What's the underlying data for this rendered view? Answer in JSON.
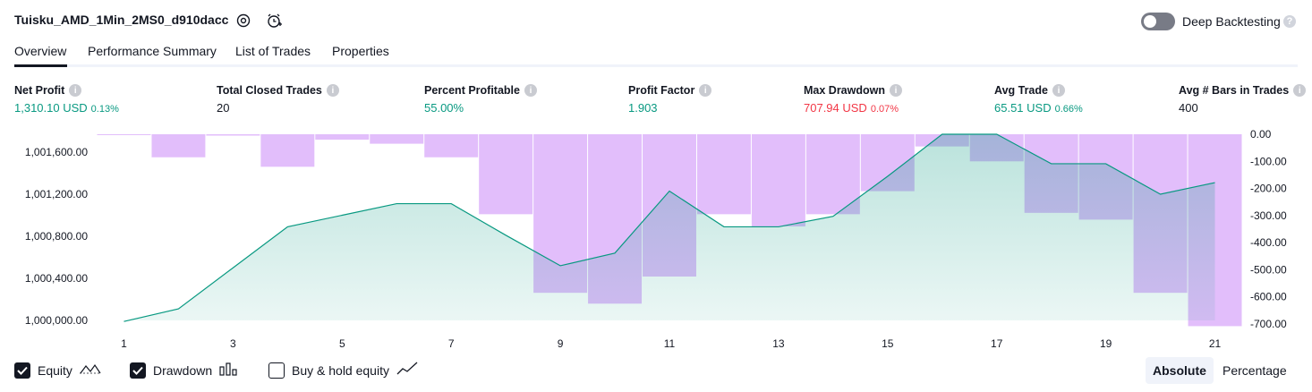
{
  "header": {
    "title": "Tuisku_AMD_1Min_2MS0_d910dacc",
    "deep_backtesting_label": "Deep Backtesting",
    "deep_backtesting_enabled": false
  },
  "tabs": [
    {
      "label": "Overview",
      "active": true
    },
    {
      "label": "Performance Summary",
      "active": false
    },
    {
      "label": "List of Trades",
      "active": false
    },
    {
      "label": "Properties",
      "active": false
    }
  ],
  "metrics": [
    {
      "label": "Net Profit",
      "value": "1,310.10 USD",
      "pct": "0.13%",
      "color": "#089981"
    },
    {
      "label": "Total Closed Trades",
      "value": "20",
      "pct": "",
      "color": "#131722"
    },
    {
      "label": "Percent Profitable",
      "value": "55.00%",
      "pct": "",
      "color": "#089981"
    },
    {
      "label": "Profit Factor",
      "value": "1.903",
      "pct": "",
      "color": "#089981"
    },
    {
      "label": "Max Drawdown",
      "value": "707.94 USD",
      "pct": "0.07%",
      "color": "#f23645"
    },
    {
      "label": "Avg Trade",
      "value": "65.51 USD",
      "pct": "0.66%",
      "color": "#089981"
    },
    {
      "label": "Avg # Bars in Trades",
      "value": "400",
      "pct": "",
      "color": "#131722"
    }
  ],
  "chart_data": {
    "type": "line",
    "x": [
      1,
      2,
      3,
      4,
      5,
      6,
      7,
      8,
      9,
      10,
      11,
      12,
      13,
      14,
      15,
      16,
      17,
      18,
      19,
      20,
      21
    ],
    "x_tick_labels": [
      "1",
      "3",
      "5",
      "7",
      "9",
      "11",
      "13",
      "15",
      "17",
      "19",
      "21"
    ],
    "series": [
      {
        "name": "Equity",
        "axis": "left",
        "style": "area",
        "color": "#089981",
        "values": [
          999990,
          1000110,
          1000500,
          1000890,
          1001000,
          1001110,
          1001110,
          1000810,
          1000520,
          1000640,
          1001230,
          1000890,
          1000890,
          1000990,
          1001370,
          1001770,
          1001770,
          1001490,
          1001490,
          1001200,
          1001310
        ]
      },
      {
        "name": "Drawdown",
        "axis": "right",
        "style": "bar",
        "color": "#ce93f8",
        "values": [
          0,
          -85,
          -5,
          -120,
          -20,
          -35,
          -85,
          -295,
          -585,
          -625,
          -525,
          -295,
          -340,
          -295,
          -210,
          -45,
          -100,
          -290,
          -315,
          -585,
          -708
        ]
      }
    ],
    "left_axis": {
      "min": 1000000,
      "max": 1001600,
      "ticks": [
        "1,000,000.00",
        "1,000,400.00",
        "1,000,800.00",
        "1,001,200.00",
        "1,001,600.00"
      ]
    },
    "right_axis": {
      "min": -700,
      "max": 0,
      "ticks": [
        "0.00",
        "-100.00",
        "-200.00",
        "-300.00",
        "-400.00",
        "-500.00",
        "-600.00",
        "-700.00"
      ]
    },
    "grid": false
  },
  "legend": [
    {
      "label": "Equity",
      "checked": true,
      "icon": "equity-line-icon"
    },
    {
      "label": "Drawdown",
      "checked": true,
      "icon": "drawdown-bars-icon"
    },
    {
      "label": "Buy & hold equity",
      "checked": false,
      "icon": "buy-hold-line-icon"
    }
  ],
  "view_mode": {
    "options": [
      "Absolute",
      "Percentage"
    ],
    "selected": "Absolute"
  }
}
